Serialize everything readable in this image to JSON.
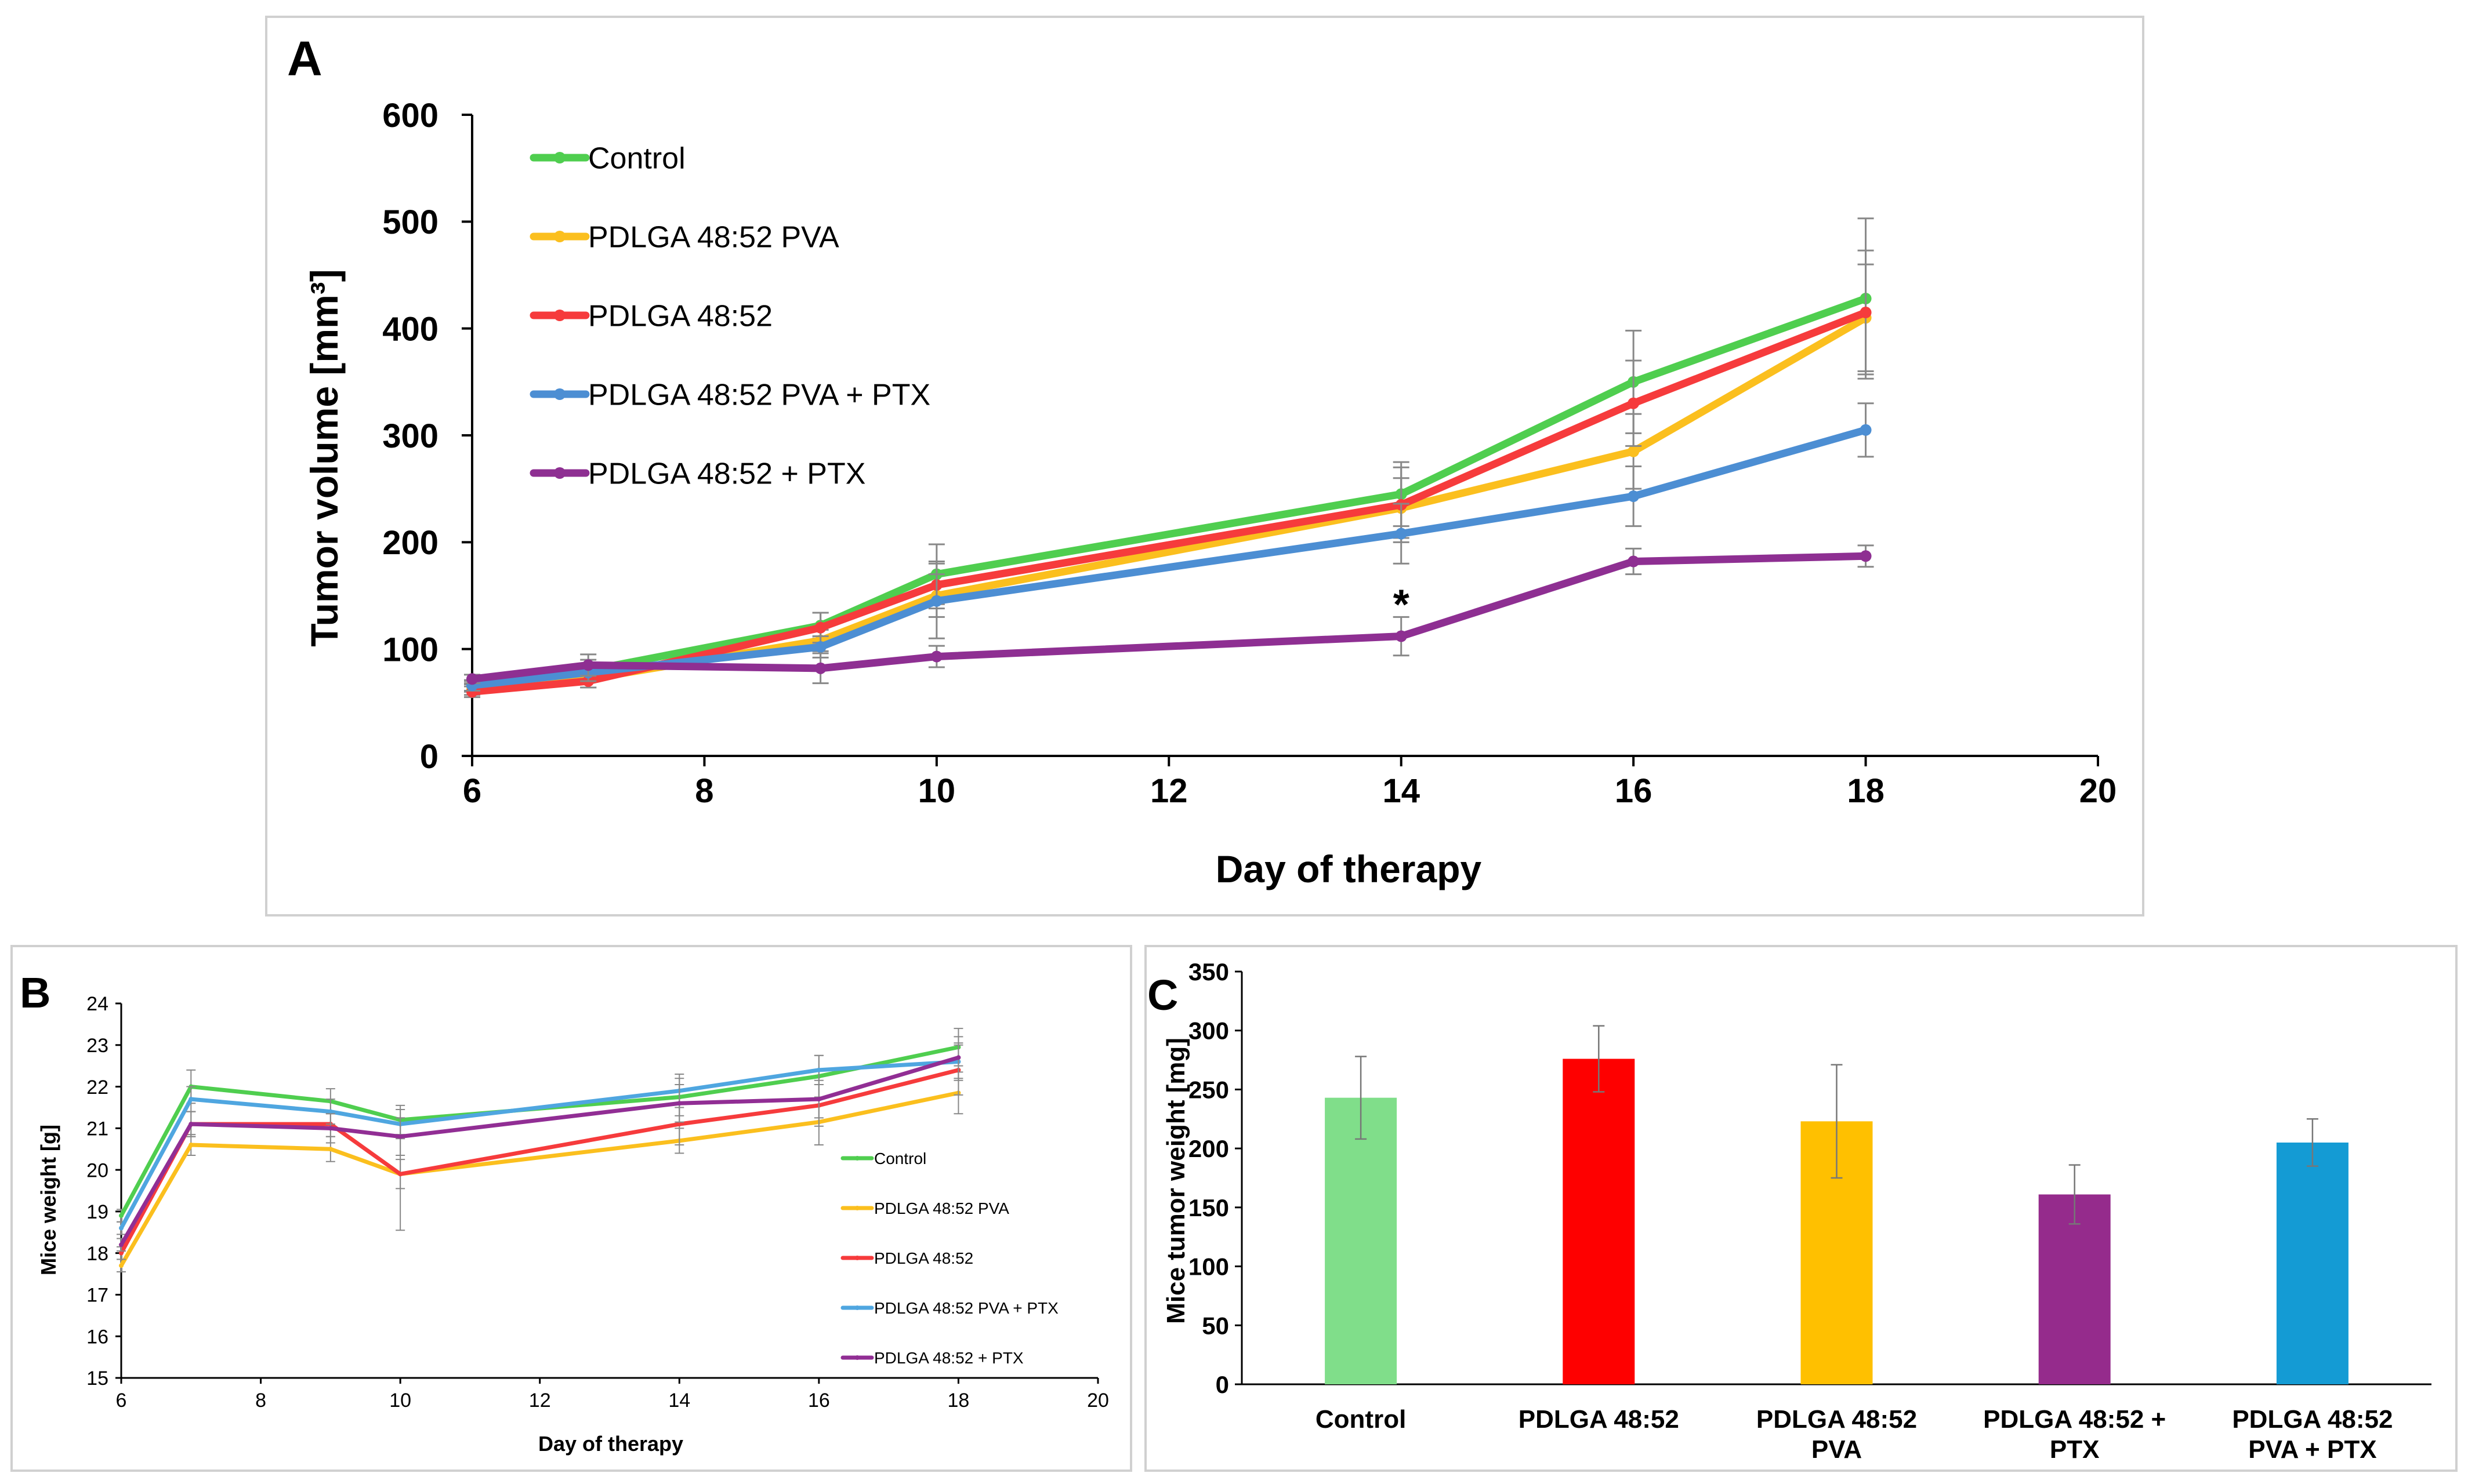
{
  "chart_data": [
    {
      "id": "A",
      "type": "line",
      "panel_label": "A",
      "title": "",
      "xlabel": "Day of therapy",
      "ylabel": "Tumor volume [mm³]",
      "xlim": [
        6,
        20
      ],
      "ylim": [
        0,
        600
      ],
      "xticks": [
        "6",
        "8",
        "10",
        "12",
        "14",
        "16",
        "18",
        "20"
      ],
      "yticks": [
        "0",
        "100",
        "200",
        "300",
        "400",
        "500",
        "600"
      ],
      "legend_position": "top-left",
      "annotation": {
        "text": "*",
        "x": 14,
        "y": 150
      },
      "series": [
        {
          "name": "Control",
          "color": "#4fce4f",
          "x": [
            6,
            7,
            9,
            10,
            14,
            16,
            18
          ],
          "y": [
            65,
            80,
            122,
            170,
            245,
            350,
            428
          ],
          "err": [
            5,
            10,
            12,
            28,
            30,
            48,
            75
          ]
        },
        {
          "name": "PDLGA 48:52 PVA",
          "color": "#fbbf1e",
          "x": [
            6,
            7,
            9,
            10,
            14,
            16,
            18
          ],
          "y": [
            62,
            72,
            108,
            150,
            232,
            285,
            410
          ],
          "err": [
            5,
            8,
            10,
            20,
            28,
            35,
            50
          ]
        },
        {
          "name": "PDLGA 48:52",
          "color": "#f63b3c",
          "x": [
            6,
            7,
            9,
            10,
            14,
            16,
            18
          ],
          "y": [
            60,
            70,
            120,
            160,
            235,
            330,
            415
          ],
          "err": [
            5,
            6,
            14,
            22,
            35,
            40,
            58
          ]
        },
        {
          "name": "PDLGA 48:52 PVA + PTX",
          "color": "#4c8ed3",
          "x": [
            6,
            7,
            9,
            10,
            14,
            16,
            18
          ],
          "y": [
            66,
            78,
            102,
            145,
            208,
            243,
            305
          ],
          "err": [
            5,
            8,
            10,
            35,
            28,
            28,
            25
          ]
        },
        {
          "name": "PDLGA 48:52 + PTX",
          "color": "#8e2f92",
          "x": [
            6,
            7,
            9,
            10,
            14,
            16,
            18
          ],
          "y": [
            72,
            85,
            82,
            93,
            112,
            182,
            187
          ],
          "err": [
            4,
            10,
            14,
            10,
            18,
            12,
            10
          ]
        }
      ]
    },
    {
      "id": "B",
      "type": "line",
      "panel_label": "B",
      "title": "",
      "xlabel": "Day of therapy",
      "ylabel": "Mice weight [g]",
      "xlim": [
        6,
        20
      ],
      "ylim": [
        15,
        24
      ],
      "xticks": [
        "6",
        "8",
        "10",
        "12",
        "14",
        "16",
        "18",
        "20"
      ],
      "yticks": [
        "15",
        "16",
        "17",
        "18",
        "19",
        "20",
        "21",
        "22",
        "23",
        "24"
      ],
      "legend_position": "bottom-right",
      "series": [
        {
          "name": "Control",
          "color": "#4fce4f",
          "x": [
            6,
            7,
            9,
            10,
            14,
            16,
            18
          ],
          "y": [
            18.9,
            22.0,
            21.65,
            21.2,
            21.75,
            22.25,
            22.95
          ],
          "err": [
            0.15,
            0.4,
            0.3,
            0.35,
            0.45,
            0.5,
            0.45
          ]
        },
        {
          "name": "PDLGA 48:52 PVA",
          "color": "#fbbf1e",
          "x": [
            6,
            7,
            9,
            10,
            14,
            16,
            18
          ],
          "y": [
            17.7,
            20.6,
            20.5,
            19.9,
            20.7,
            21.15,
            21.85
          ],
          "err": [
            0.15,
            0.25,
            0.3,
            0.35,
            0.3,
            0.55,
            0.5
          ]
        },
        {
          "name": "PDLGA 48:52",
          "color": "#f63b3c",
          "x": [
            6,
            7,
            9,
            10,
            14,
            16,
            18
          ],
          "y": [
            18.0,
            21.1,
            21.1,
            19.9,
            21.1,
            21.55,
            22.4
          ],
          "err": [
            0.15,
            0.3,
            0.3,
            1.35,
            0.5,
            0.5,
            0.6
          ]
        },
        {
          "name": "PDLGA 48:52 PVA + PTX",
          "color": "#4fa6e0",
          "x": [
            6,
            7,
            9,
            10,
            14,
            16,
            18
          ],
          "y": [
            18.6,
            21.7,
            21.4,
            21.1,
            21.9,
            22.4,
            22.6
          ],
          "err": [
            0.15,
            0.3,
            0.3,
            0.35,
            0.4,
            0.35,
            0.45
          ]
        },
        {
          "name": "PDLGA 48:52 + PTX",
          "color": "#912e94",
          "x": [
            6,
            7,
            9,
            10,
            14,
            16,
            18
          ],
          "y": [
            18.2,
            21.1,
            21.0,
            20.8,
            21.6,
            21.7,
            22.7
          ],
          "err": [
            0.15,
            0.3,
            0.35,
            0.45,
            0.45,
            0.45,
            0.5
          ]
        }
      ]
    },
    {
      "id": "C",
      "type": "bar",
      "panel_label": "C",
      "title": "",
      "xlabel": "",
      "ylabel": "Mice tumor weight [mg]",
      "ylim": [
        0,
        350
      ],
      "yticks": [
        "0",
        "50",
        "100",
        "150",
        "200",
        "250",
        "300",
        "350"
      ],
      "categories": [
        [
          "Control"
        ],
        [
          "PDLGA 48:52"
        ],
        [
          "PDLGA 48:52",
          "PVA"
        ],
        [
          "PDLGA 48:52 +",
          "PTX"
        ],
        [
          "PDLGA 48:52",
          "PVA + PTX"
        ]
      ],
      "values": [
        243,
        276,
        223,
        161,
        205
      ],
      "err": [
        35,
        28,
        48,
        25,
        20
      ],
      "colors": [
        "#80de8a",
        "#fe0000",
        "#ffc000",
        "#952b8c",
        "#149bd4"
      ]
    }
  ]
}
